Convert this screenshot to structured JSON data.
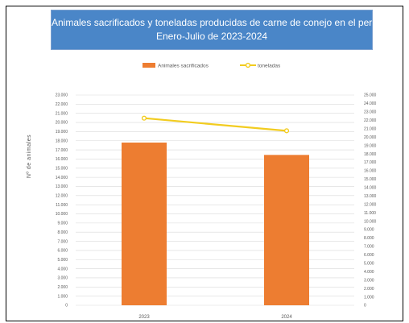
{
  "chart_data": {
    "type": "bar+line",
    "title_line1": "Animales sacrificados y toneladas producidas de carne de conejo en el periodo",
    "title_line2": "Enero-Julio de 2023-2024",
    "ylabel": "Nº de animales",
    "categories": [
      "2023",
      "2024"
    ],
    "series": [
      {
        "name": "Animales sacrificados",
        "kind": "bar",
        "axis": "left",
        "values": [
          17800,
          16450
        ]
      },
      {
        "name": "toneladas",
        "kind": "line",
        "axis": "right",
        "values": [
          22250,
          20750
        ]
      }
    ],
    "left_axis": {
      "ylim": [
        0,
        23000
      ],
      "ticks": [
        "0",
        "1.000",
        "2.000",
        "3.000",
        "4.000",
        "5.000",
        "6.000",
        "7.000",
        "8.000",
        "9.000",
        "10.000",
        "11.000",
        "12.000",
        "13.000",
        "14.000",
        "15.000",
        "16.000",
        "17.000",
        "18.000",
        "19.000",
        "20.000",
        "21.000",
        "22.000",
        "23.000"
      ]
    },
    "right_axis": {
      "ylim": [
        0,
        25000
      ],
      "ticks": [
        "0",
        "1.000",
        "2.000",
        "3.000",
        "4.000",
        "5.000",
        "6.000",
        "7.000",
        "8.000",
        "9.000",
        "10.000",
        "11.000",
        "12.000",
        "13.000",
        "14.000",
        "15.000",
        "16.000",
        "17.000",
        "18.000",
        "19.000",
        "20.000",
        "21.000",
        "22.000",
        "23.000",
        "24.000",
        "25.000"
      ]
    },
    "legend_position": "top",
    "grid": true,
    "colors": {
      "bar": "#ed7d31",
      "line": "#f2cc1f",
      "title_bg": "#4a86c8",
      "grid": "#d9d9d9"
    }
  }
}
